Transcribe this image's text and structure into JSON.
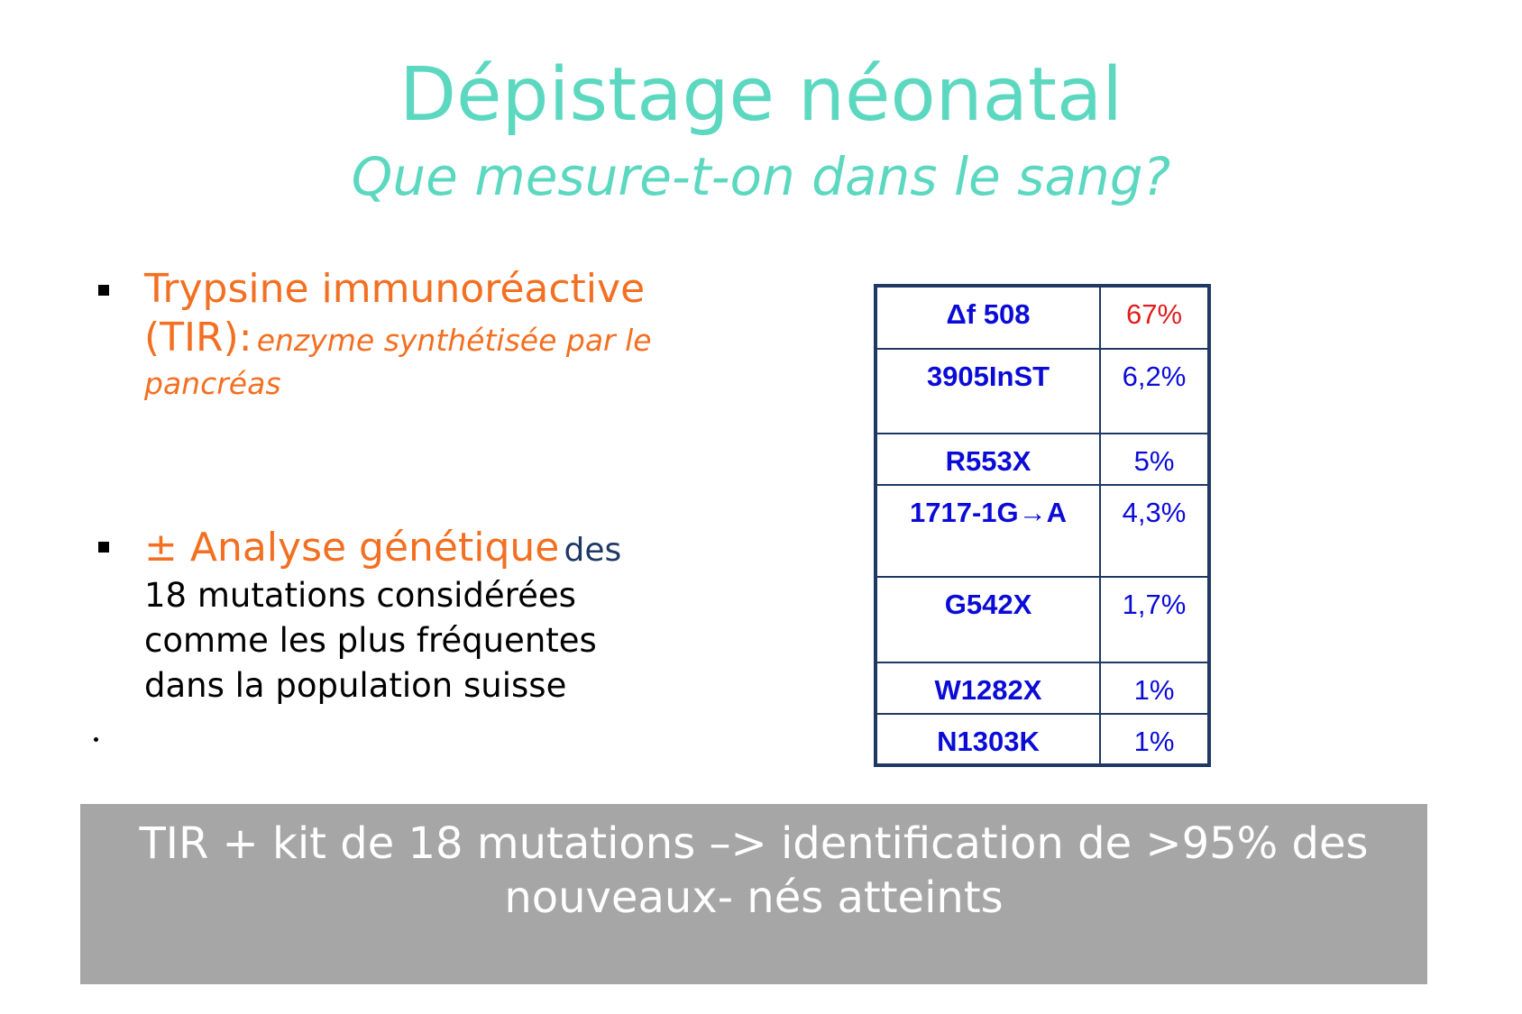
{
  "slide": {
    "title": "Dépistage néonatal",
    "subtitle": "Que mesure-t-on dans le sang?"
  },
  "item1": {
    "heading_line1": "Trypsine immunoréactive",
    "heading_line2": "(TIR):",
    "description": "enzyme synthétisée par le",
    "description_line2": "pancréas"
  },
  "item2": {
    "lead": "± Analyse génétique",
    "des": "des",
    "line1": "18 mutations considérées",
    "line2": "comme les plus fréquentes",
    "line3": "dans la population suisse"
  },
  "stray_mark": ".",
  "mutations_table": {
    "rows": [
      {
        "name": "Δf 508",
        "pct": "67%"
      },
      {
        "name": "3905InST",
        "pct": "6,2%"
      },
      {
        "name": "R553X",
        "pct": "5%"
      },
      {
        "name": "1717-1G→A",
        "pct": "4,3%"
      },
      {
        "name": "G542X",
        "pct": "1,7%"
      },
      {
        "name": "W1282X",
        "pct": "1%"
      },
      {
        "name": "N1303K",
        "pct": "1%"
      }
    ]
  },
  "banner": {
    "line1": "TIR + kit de 18 mutations –> identification de >95% des",
    "line2": "nouveaux- nés atteints"
  },
  "colors": {
    "title": "#5cd8c0",
    "accent_orange": "#f36f21",
    "table_text": "#0b0bd8",
    "table_highlight": "#e01e1e",
    "banner_bg": "#a6a6a6"
  }
}
